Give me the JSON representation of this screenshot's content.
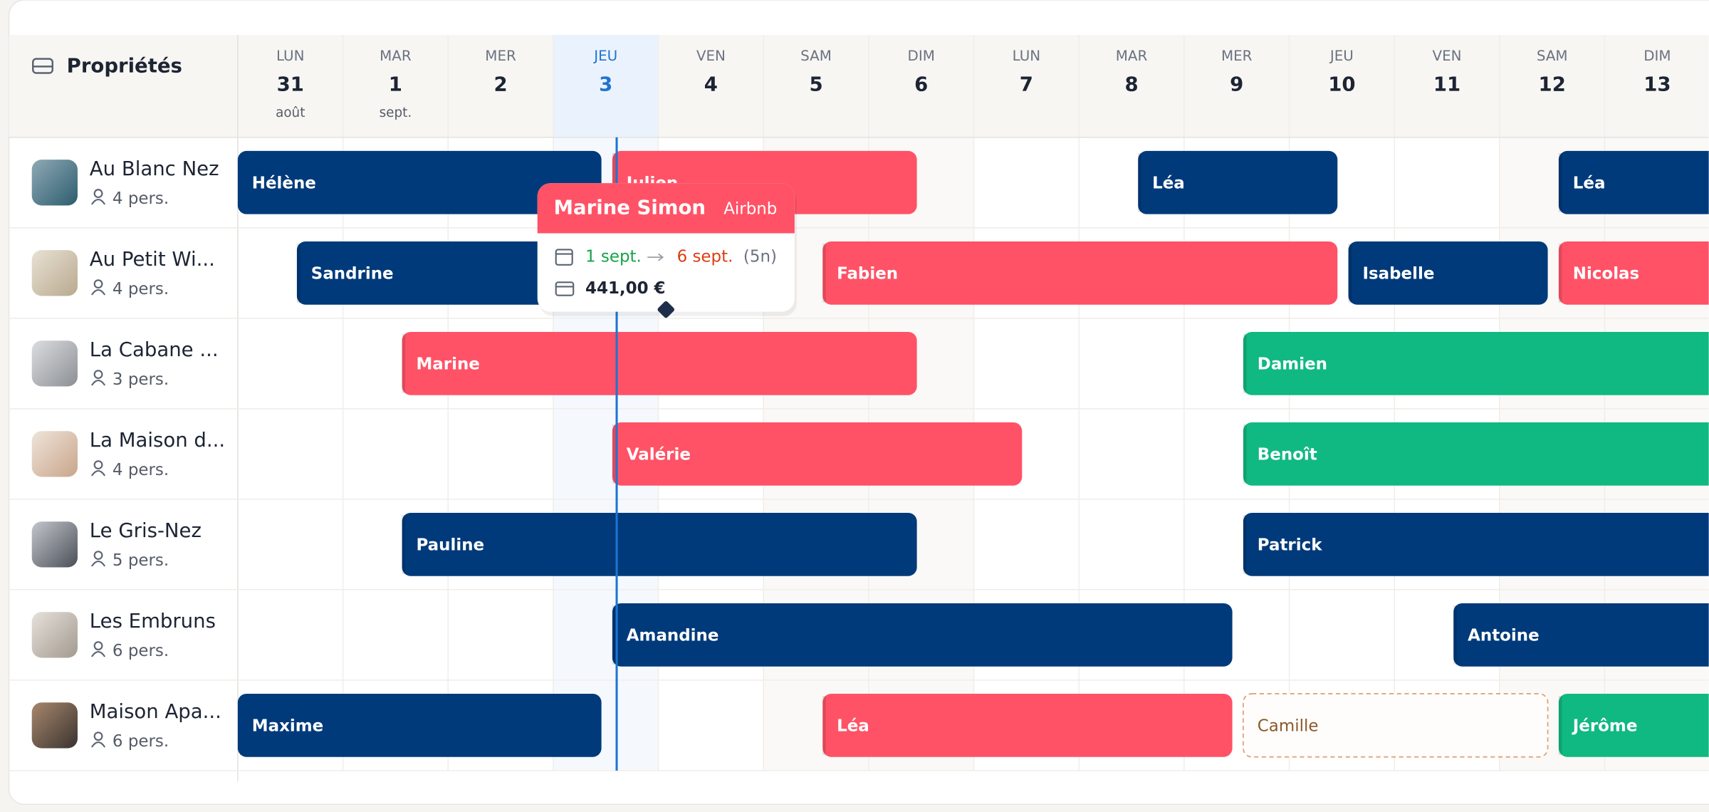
{
  "header": {
    "title": "Propriétés"
  },
  "days": [
    {
      "dow": "LUN",
      "day": 31,
      "month": "août"
    },
    {
      "dow": "MAR",
      "day": 1,
      "month": "sept."
    },
    {
      "dow": "MER",
      "day": 2
    },
    {
      "dow": "JEU",
      "day": 3,
      "today": true
    },
    {
      "dow": "VEN",
      "day": 4
    },
    {
      "dow": "SAM",
      "day": 5
    },
    {
      "dow": "DIM",
      "day": 6
    },
    {
      "dow": "LUN",
      "day": 7
    },
    {
      "dow": "MAR",
      "day": 8
    },
    {
      "dow": "MER",
      "day": 9
    },
    {
      "dow": "JEU",
      "day": 10
    },
    {
      "dow": "VEN",
      "day": 11
    },
    {
      "dow": "SAM",
      "day": 12
    },
    {
      "dow": "DIM",
      "day": 13
    }
  ],
  "properties": [
    {
      "name": "Au Blanc Nez",
      "capacity": "4 pers.",
      "bookings": [
        {
          "guest": "Hélène",
          "color": "#003a7a"
        },
        {
          "guest": "Julien",
          "color": "#ff5266"
        },
        {
          "guest": "Léa",
          "color": "#003a7a"
        },
        {
          "guest": "Léa",
          "color": "#003a7a"
        }
      ]
    },
    {
      "name": "Au Petit Wi...",
      "capacity": "4 pers.",
      "bookings": [
        {
          "guest": "Sandrine",
          "color": "#003a7a"
        },
        {
          "guest": "Fabien",
          "color": "#ff5266"
        },
        {
          "guest": "Isabelle",
          "color": "#003a7a"
        },
        {
          "guest": "Nicolas",
          "color": "#ff5266"
        }
      ]
    },
    {
      "name": "La Cabane ...",
      "capacity": "3 pers.",
      "bookings": [
        {
          "guest": "Marine",
          "color": "#ff5266"
        },
        {
          "guest": "Damien",
          "color": "#10b981"
        }
      ]
    },
    {
      "name": "La Maison d...",
      "capacity": "4 pers.",
      "bookings": [
        {
          "guest": "Valérie",
          "color": "#ff5266"
        },
        {
          "guest": "Benoît",
          "color": "#10b981"
        }
      ]
    },
    {
      "name": "Le Gris-Nez",
      "capacity": "5 pers.",
      "bookings": [
        {
          "guest": "Pauline",
          "color": "#003a7a"
        },
        {
          "guest": "Patrick",
          "color": "#003a7a"
        }
      ]
    },
    {
      "name": "Les Embruns",
      "capacity": "6 pers.",
      "bookings": [
        {
          "guest": "Amandine",
          "color": "#003a7a"
        },
        {
          "guest": "Antoine",
          "color": "#003a7a"
        }
      ]
    },
    {
      "name": "Maison Apa...",
      "capacity": "6 pers.",
      "bookings": [
        {
          "guest": "Maxime",
          "color": "#003a7a"
        },
        {
          "guest": "Léa",
          "color": "#ff5266"
        },
        {
          "guest": "Camille",
          "color": "#e0a47c",
          "outline": true
        },
        {
          "guest": "Jérôme",
          "color": "#10b981"
        }
      ]
    }
  ],
  "tooltip": {
    "guest": "Marine Simon",
    "source": "Airbnb",
    "check_in": "1 sept.",
    "check_out": "6 sept.",
    "nights": "(5n)",
    "price": "441,00 €"
  }
}
